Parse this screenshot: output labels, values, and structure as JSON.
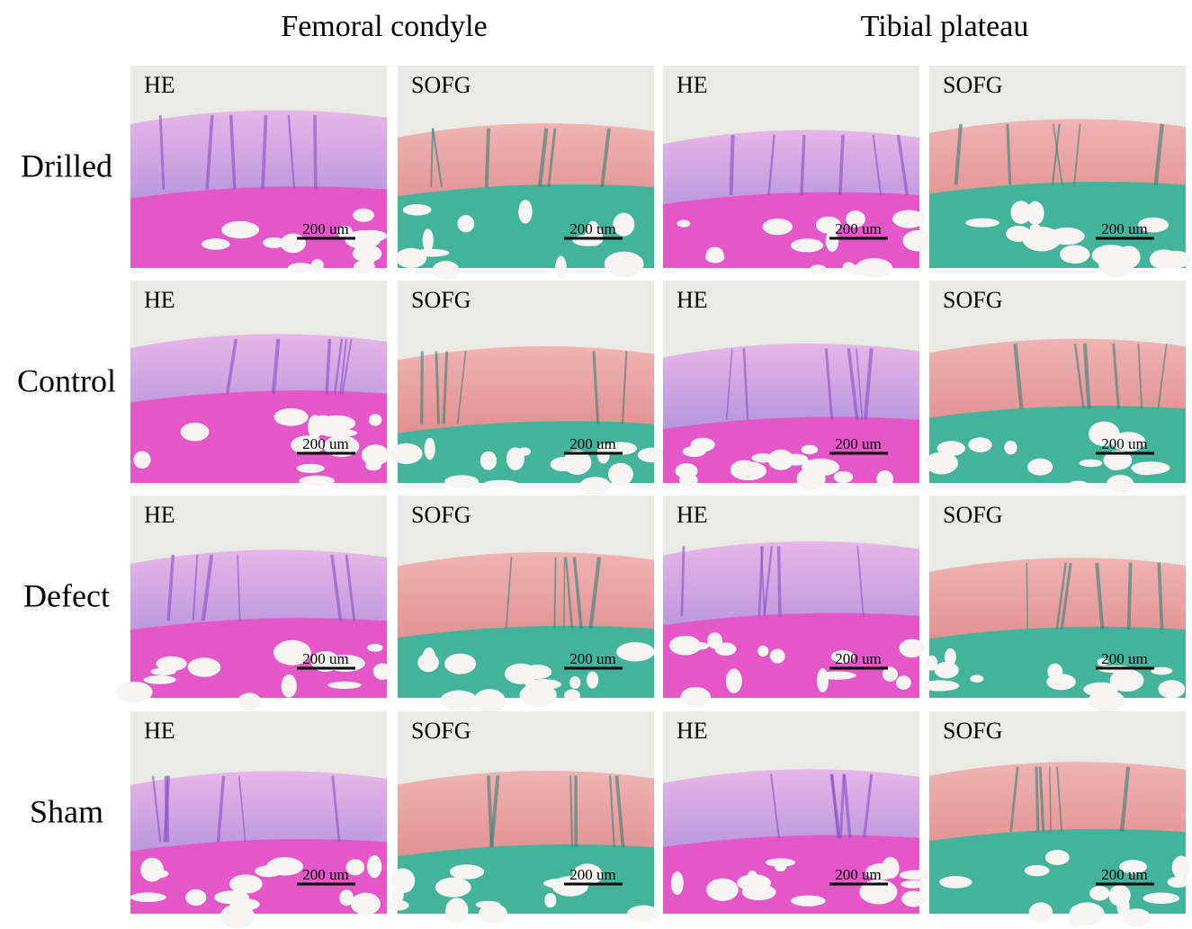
{
  "headers": [
    "Femoral condyle",
    "Tibial plateau"
  ],
  "rows": [
    {
      "label": "Drilled",
      "panels": [
        {
          "stain": "HE",
          "scale": "200 um"
        },
        {
          "stain": "SOFG",
          "scale": "200 um"
        },
        {
          "stain": "HE",
          "scale": "200 um"
        },
        {
          "stain": "SOFG",
          "scale": "200 um"
        }
      ]
    },
    {
      "label": "Control",
      "panels": [
        {
          "stain": "HE",
          "scale": "200 um"
        },
        {
          "stain": "SOFG",
          "scale": "200 um"
        },
        {
          "stain": "HE",
          "scale": "200 um"
        },
        {
          "stain": "SOFG",
          "scale": "200 um"
        }
      ]
    },
    {
      "label": "Defect",
      "panels": [
        {
          "stain": "HE",
          "scale": "200 um"
        },
        {
          "stain": "SOFG",
          "scale": "200 um"
        },
        {
          "stain": "HE",
          "scale": "200 um"
        },
        {
          "stain": "SOFG",
          "scale": "200 um"
        }
      ]
    },
    {
      "label": "Sham",
      "panels": [
        {
          "stain": "HE",
          "scale": "200 um"
        },
        {
          "stain": "SOFG",
          "scale": "200 um"
        },
        {
          "stain": "HE",
          "scale": "200 um"
        },
        {
          "stain": "SOFG",
          "scale": "200 um"
        }
      ]
    }
  ]
}
